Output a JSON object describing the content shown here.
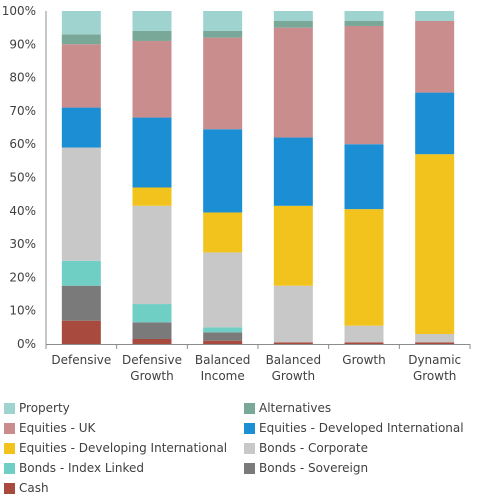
{
  "chart_data": {
    "type": "bar",
    "stacked": true,
    "categories": [
      [
        "Defensive"
      ],
      [
        "Defensive",
        "Growth"
      ],
      [
        "Balanced",
        "Income"
      ],
      [
        "Balanced",
        "Growth"
      ],
      [
        "Growth"
      ],
      [
        "Dynamic",
        "Growth"
      ]
    ],
    "ylim": [
      0,
      100
    ],
    "yticks": [
      0,
      10,
      20,
      30,
      40,
      50,
      60,
      70,
      80,
      90,
      100
    ],
    "ytick_labels": [
      "0%",
      "10%",
      "20%",
      "30%",
      "40%",
      "50%",
      "60%",
      "70%",
      "80%",
      "90%",
      "100%"
    ],
    "grid": false,
    "legend_position": "bottom",
    "series": [
      {
        "name": "Cash",
        "color": "#a84a3e",
        "values": [
          7,
          1.5,
          1,
          0.5,
          0.5,
          0.5
        ]
      },
      {
        "name": "Bonds - Sovereign",
        "color": "#7a7a7a",
        "values": [
          10.5,
          5,
          2.5,
          0,
          0,
          0
        ]
      },
      {
        "name": "Bonds - Index Linked",
        "color": "#6fcfc4",
        "values": [
          7.5,
          5.5,
          1.5,
          0,
          0,
          0
        ]
      },
      {
        "name": "Bonds - Corporate",
        "color": "#c8c8c8",
        "values": [
          34,
          29.5,
          22.5,
          17,
          5,
          2.5
        ]
      },
      {
        "name": "Equities - Developing International",
        "color": "#f2c31c",
        "values": [
          0,
          5.5,
          12,
          24,
          35,
          54
        ]
      },
      {
        "name": "Equities - Developed International",
        "color": "#1c8fd4",
        "values": [
          12,
          21,
          25,
          20.5,
          19.5,
          18.5
        ]
      },
      {
        "name": "Equities - UK",
        "color": "#c98d8d",
        "values": [
          19,
          23,
          27.5,
          33,
          35.5,
          21.5
        ]
      },
      {
        "name": "Alternatives",
        "color": "#7aa898",
        "values": [
          3,
          3,
          2,
          2,
          1.5,
          0
        ]
      },
      {
        "name": "Property",
        "color": "#9fd3d0",
        "values": [
          7,
          6,
          6,
          3,
          3,
          3
        ]
      }
    ]
  },
  "legend": {
    "items": [
      {
        "label": "Property",
        "color": "#9fd3d0"
      },
      {
        "label": "Alternatives",
        "color": "#7aa898"
      },
      {
        "label": "Equities - UK",
        "color": "#c98d8d"
      },
      {
        "label": "Equities - Developed International",
        "color": "#1c8fd4"
      },
      {
        "label": "Equities - Developing International",
        "color": "#f2c31c"
      },
      {
        "label": "Bonds - Corporate",
        "color": "#c8c8c8"
      },
      {
        "label": "Bonds - Index Linked",
        "color": "#6fcfc4"
      },
      {
        "label": "Bonds - Sovereign",
        "color": "#7a7a7a"
      },
      {
        "label": "Cash",
        "color": "#a84a3e"
      }
    ]
  }
}
